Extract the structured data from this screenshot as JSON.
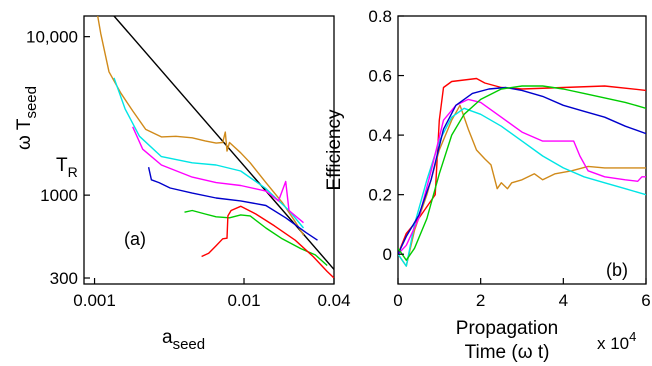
{
  "chart_data": [
    {
      "type": "line",
      "panel_label": "(a)",
      "xscale": "log",
      "yscale": "log",
      "xlim": [
        0.00085,
        0.04
      ],
      "ylim": [
        275,
        13500
      ],
      "xticks": [
        0.001,
        0.01,
        0.04
      ],
      "xtick_labels": [
        "0.001",
        "0.01",
        "0.04"
      ],
      "yticks": [
        300,
        1000,
        10000
      ],
      "ytick_labels": [
        "300",
        "1000",
        "10,000"
      ],
      "xlabel_main": "a",
      "xlabel_sub": "seed",
      "ylabel_omega": "ω",
      "ylabel_main": "T",
      "ylabel_sub": "seed",
      "annotation_main": "T",
      "annotation_sub": "R",
      "annotation_y": 1550,
      "series": [
        {
          "color": "#000000",
          "points": [
            [
              0.00135,
              13500
            ],
            [
              0.04,
              340
            ]
          ]
        },
        {
          "color": "#d08a1a",
          "points": [
            [
              0.00105,
              13500
            ],
            [
              0.0011,
              10500
            ],
            [
              0.00125,
              6000
            ],
            [
              0.0015,
              4400
            ],
            [
              0.0018,
              3400
            ],
            [
              0.0022,
              2600
            ],
            [
              0.0028,
              2330
            ],
            [
              0.0035,
              2350
            ],
            [
              0.0045,
              2300
            ],
            [
              0.0055,
              2200
            ],
            [
              0.0065,
              2130
            ],
            [
              0.0072,
              2150
            ],
            [
              0.0075,
              2500
            ],
            [
              0.0077,
              1900
            ],
            [
              0.008,
              2150
            ],
            [
              0.0095,
              1850
            ],
            [
              0.011,
              1600
            ],
            [
              0.014,
              1200
            ],
            [
              0.018,
              900
            ],
            [
              0.022,
              680
            ],
            [
              0.025,
              560
            ]
          ]
        },
        {
          "color": "#00e5e5",
          "points": [
            [
              0.00135,
              5500
            ],
            [
              0.0016,
              3500
            ],
            [
              0.002,
              2350
            ],
            [
              0.0028,
              1750
            ],
            [
              0.0045,
              1600
            ],
            [
              0.0065,
              1550
            ],
            [
              0.0095,
              1420
            ],
            [
              0.014,
              1100
            ],
            [
              0.02,
              800
            ],
            [
              0.025,
              620
            ]
          ]
        },
        {
          "color": "#ff00ff",
          "points": [
            [
              0.0018,
              2700
            ],
            [
              0.0021,
              1950
            ],
            [
              0.0028,
              1550
            ],
            [
              0.0045,
              1300
            ],
            [
              0.0065,
              1200
            ],
            [
              0.0095,
              1150
            ],
            [
              0.014,
              1060
            ],
            [
              0.017,
              920
            ],
            [
              0.019,
              1220
            ],
            [
              0.02,
              800
            ],
            [
              0.025,
              670
            ]
          ]
        },
        {
          "color": "#0000cc",
          "points": [
            [
              0.0023,
              1500
            ],
            [
              0.0024,
              1250
            ],
            [
              0.0027,
              1200
            ],
            [
              0.0032,
              1110
            ],
            [
              0.0045,
              1030
            ],
            [
              0.0065,
              960
            ],
            [
              0.0095,
              920
            ],
            [
              0.014,
              860
            ],
            [
              0.019,
              720
            ],
            [
              0.026,
              580
            ],
            [
              0.031,
              520
            ]
          ]
        },
        {
          "color": "#00cc00",
          "points": [
            [
              0.004,
              780
            ],
            [
              0.0045,
              800
            ],
            [
              0.0055,
              760
            ],
            [
              0.0065,
              730
            ],
            [
              0.008,
              720
            ],
            [
              0.0095,
              750
            ],
            [
              0.011,
              740
            ],
            [
              0.014,
              620
            ],
            [
              0.018,
              530
            ],
            [
              0.024,
              460
            ],
            [
              0.03,
              420
            ],
            [
              0.036,
              360
            ]
          ]
        },
        {
          "color": "#ff0000",
          "points": [
            [
              0.0052,
              410
            ],
            [
              0.0058,
              430
            ],
            [
              0.0065,
              480
            ],
            [
              0.0072,
              530
            ],
            [
              0.0077,
              535
            ],
            [
              0.0078,
              740
            ],
            [
              0.0082,
              800
            ],
            [
              0.0095,
              850
            ],
            [
              0.012,
              760
            ],
            [
              0.016,
              640
            ],
            [
              0.022,
              520
            ],
            [
              0.029,
              410
            ],
            [
              0.036,
              330
            ],
            [
              0.04,
              300
            ]
          ]
        }
      ]
    },
    {
      "type": "line",
      "panel_label": "(b)",
      "xlim": [
        0,
        6
      ],
      "ylim": [
        -0.1,
        0.8
      ],
      "xticks": [
        0,
        2,
        4,
        6
      ],
      "xtick_labels": [
        "0",
        "2",
        "4",
        "6"
      ],
      "yticks": [
        0,
        0.2,
        0.4,
        0.6,
        0.8
      ],
      "ytick_labels": [
        "0",
        "0.2",
        "0.4",
        "0.6",
        "0.8"
      ],
      "ylabel": "Efficiency",
      "xlabel_line1": "Propagation",
      "xlabel_line2": "Time (ω t)",
      "x_multiplier_base": "x 10",
      "x_multiplier_exp": "4",
      "series": [
        {
          "color": "#ff0000",
          "points": [
            [
              0,
              0
            ],
            [
              0.2,
              0.07
            ],
            [
              0.5,
              0.12
            ],
            [
              0.8,
              0.18
            ],
            [
              0.9,
              0.2
            ],
            [
              1.0,
              0.45
            ],
            [
              1.1,
              0.56
            ],
            [
              1.3,
              0.58
            ],
            [
              1.6,
              0.585
            ],
            [
              1.9,
              0.59
            ],
            [
              2.1,
              0.575
            ],
            [
              2.5,
              0.56
            ],
            [
              3,
              0.555
            ],
            [
              4,
              0.56
            ],
            [
              5,
              0.565
            ],
            [
              6,
              0.55
            ]
          ]
        },
        {
          "color": "#d08a1a",
          "points": [
            [
              0,
              0
            ],
            [
              0.2,
              -0.04
            ],
            [
              0.4,
              0.08
            ],
            [
              0.7,
              0.2
            ],
            [
              1.0,
              0.35
            ],
            [
              1.3,
              0.45
            ],
            [
              1.5,
              0.5
            ],
            [
              1.7,
              0.42
            ],
            [
              1.9,
              0.35
            ],
            [
              2.1,
              0.32
            ],
            [
              2.25,
              0.3
            ],
            [
              2.4,
              0.22
            ],
            [
              2.5,
              0.24
            ],
            [
              2.65,
              0.22
            ],
            [
              2.75,
              0.24
            ],
            [
              3.0,
              0.25
            ],
            [
              3.3,
              0.27
            ],
            [
              3.5,
              0.25
            ],
            [
              3.8,
              0.27
            ],
            [
              4.2,
              0.28
            ],
            [
              4.6,
              0.295
            ],
            [
              5,
              0.29
            ],
            [
              6,
              0.29
            ]
          ]
        },
        {
          "color": "#00e5e5",
          "points": [
            [
              0,
              0
            ],
            [
              0.2,
              -0.04
            ],
            [
              0.4,
              0.1
            ],
            [
              0.7,
              0.25
            ],
            [
              1.0,
              0.38
            ],
            [
              1.3,
              0.46
            ],
            [
              1.6,
              0.49
            ],
            [
              2.0,
              0.47
            ],
            [
              2.5,
              0.43
            ],
            [
              3,
              0.38
            ],
            [
              3.5,
              0.33
            ],
            [
              4,
              0.29
            ],
            [
              4.5,
              0.26
            ],
            [
              5,
              0.24
            ],
            [
              5.5,
              0.22
            ],
            [
              6,
              0.2
            ]
          ]
        },
        {
          "color": "#ff00ff",
          "points": [
            [
              0,
              0
            ],
            [
              0.2,
              0.03
            ],
            [
              0.5,
              0.12
            ],
            [
              0.8,
              0.28
            ],
            [
              1.1,
              0.45
            ],
            [
              1.4,
              0.5
            ],
            [
              1.7,
              0.52
            ],
            [
              2.0,
              0.51
            ],
            [
              2.5,
              0.46
            ],
            [
              3,
              0.41
            ],
            [
              3.5,
              0.38
            ],
            [
              4.0,
              0.38
            ],
            [
              4.25,
              0.38
            ],
            [
              4.4,
              0.33
            ],
            [
              4.6,
              0.28
            ],
            [
              5,
              0.26
            ],
            [
              5.5,
              0.25
            ],
            [
              5.8,
              0.245
            ],
            [
              5.9,
              0.26
            ],
            [
              6,
              0.26
            ]
          ]
        },
        {
          "color": "#0000cc",
          "points": [
            [
              0,
              0
            ],
            [
              0.2,
              0.06
            ],
            [
              0.5,
              0.13
            ],
            [
              0.8,
              0.25
            ],
            [
              1.1,
              0.42
            ],
            [
              1.4,
              0.5
            ],
            [
              1.8,
              0.54
            ],
            [
              2.2,
              0.555
            ],
            [
              2.6,
              0.56
            ],
            [
              3,
              0.55
            ],
            [
              3.5,
              0.53
            ],
            [
              4,
              0.5
            ],
            [
              4.5,
              0.48
            ],
            [
              5,
              0.46
            ],
            [
              5.5,
              0.43
            ],
            [
              6,
              0.405
            ]
          ]
        },
        {
          "color": "#00cc00",
          "points": [
            [
              0,
              0.02
            ],
            [
              0.2,
              -0.02
            ],
            [
              0.4,
              0.02
            ],
            [
              0.7,
              0.12
            ],
            [
              1.0,
              0.27
            ],
            [
              1.3,
              0.4
            ],
            [
              1.6,
              0.47
            ],
            [
              2.0,
              0.52
            ],
            [
              2.5,
              0.555
            ],
            [
              3,
              0.565
            ],
            [
              3.5,
              0.565
            ],
            [
              4,
              0.555
            ],
            [
              4.5,
              0.54
            ],
            [
              5,
              0.525
            ],
            [
              5.5,
              0.51
            ],
            [
              6,
              0.49
            ]
          ]
        }
      ]
    }
  ]
}
